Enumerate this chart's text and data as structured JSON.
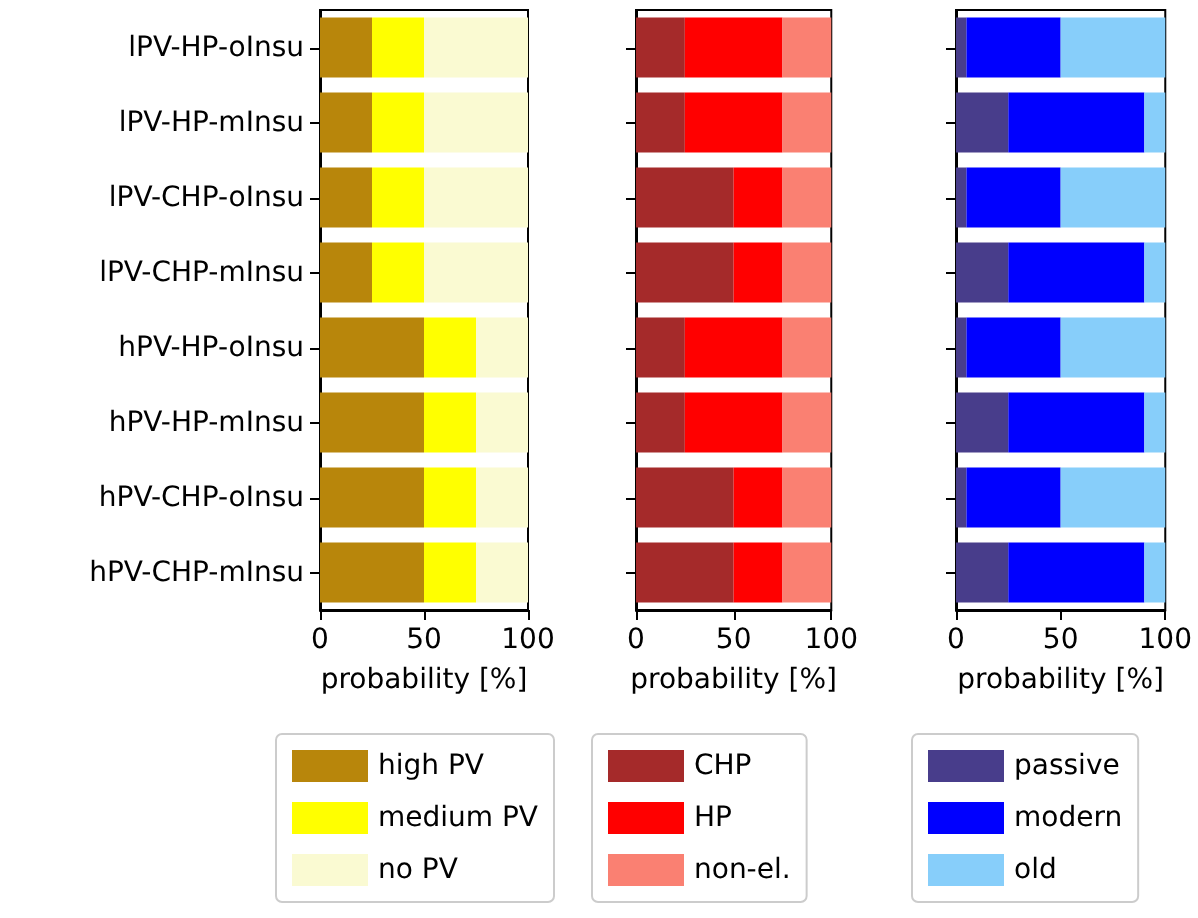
{
  "chart_data": [
    {
      "type": "bar",
      "orientation": "horizontal",
      "stacked": true,
      "categories": [
        "lPV-HP-oInsu",
        "lPV-HP-mInsu",
        "lPV-CHP-oInsu",
        "lPV-CHP-mInsu",
        "hPV-HP-oInsu",
        "hPV-HP-mInsu",
        "hPV-CHP-oInsu",
        "hPV-CHP-mInsu"
      ],
      "xlabel": "probability [%]",
      "xlim": [
        0,
        100
      ],
      "xticks": [
        0,
        50,
        100
      ],
      "grid": false,
      "legend": "bottom",
      "series": [
        {
          "name": "high PV",
          "color": "#b8860b",
          "values": [
            25,
            25,
            25,
            25,
            50,
            50,
            50,
            50
          ]
        },
        {
          "name": "medium PV",
          "color": "#ffff00",
          "values": [
            25,
            25,
            25,
            25,
            25,
            25,
            25,
            25
          ]
        },
        {
          "name": "no PV",
          "color": "#fafad2",
          "values": [
            50,
            50,
            50,
            50,
            25,
            25,
            25,
            25
          ]
        }
      ]
    },
    {
      "type": "bar",
      "orientation": "horizontal",
      "stacked": true,
      "categories": [
        null,
        null,
        null,
        null,
        null,
        null,
        null,
        null
      ],
      "xlabel": "probability [%]",
      "xlim": [
        0,
        100
      ],
      "xticks": [
        0,
        50,
        100
      ],
      "grid": false,
      "legend": "bottom",
      "tick_labels": "x",
      "series": [
        {
          "name": "CHP",
          "color": "#a52a2a",
          "values": [
            25,
            25,
            50,
            50,
            25,
            25,
            50,
            50
          ]
        },
        {
          "name": "HP",
          "color": "#ff0000",
          "values": [
            50,
            50,
            25,
            25,
            50,
            50,
            25,
            25
          ]
        },
        {
          "name": "non-el.",
          "color": "#fa8072",
          "values": [
            25,
            25,
            25,
            25,
            25,
            25,
            25,
            25
          ]
        }
      ]
    },
    {
      "type": "bar",
      "orientation": "horizontal",
      "stacked": true,
      "categories": [
        null,
        null,
        null,
        null,
        null,
        null,
        null,
        null
      ],
      "xlabel": "probability [%]",
      "xlim": [
        0,
        100
      ],
      "xticks": [
        0,
        50,
        100
      ],
      "grid": false,
      "legend": "bottom",
      "tick_labels": "x",
      "series": [
        {
          "name": "passive",
          "color": "#483d8b",
          "values": [
            5,
            25,
            5,
            25,
            5,
            25,
            5,
            25
          ]
        },
        {
          "name": "modern",
          "color": "#0000ff",
          "values": [
            45,
            65,
            45,
            65,
            45,
            65,
            45,
            65
          ]
        },
        {
          "name": "old",
          "color": "#87cefa",
          "values": [
            50,
            10,
            50,
            10,
            50,
            10,
            50,
            10
          ]
        }
      ]
    }
  ]
}
